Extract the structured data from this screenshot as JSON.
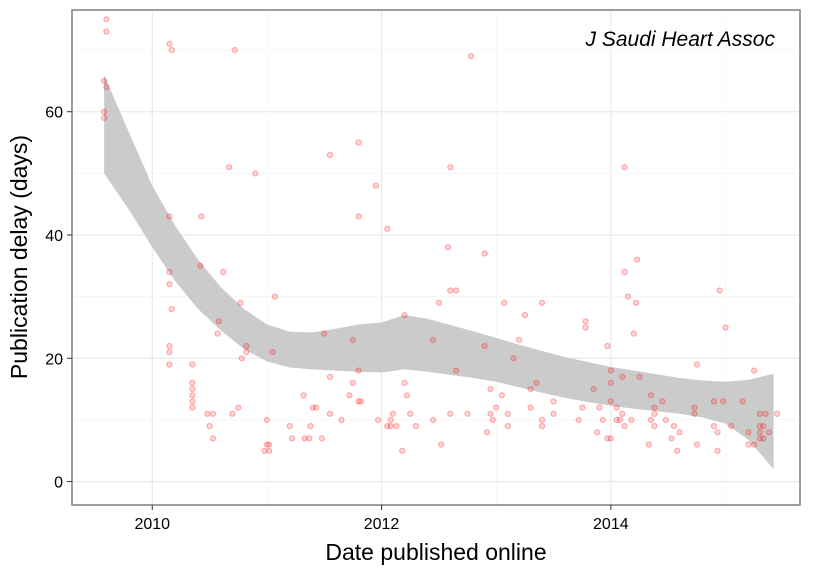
{
  "chart_data": {
    "type": "scatter",
    "title": "",
    "annotation": "J Saudi Heart Assoc",
    "xlabel": "Date published online",
    "ylabel": "Publication delay (days)",
    "xlim": [
      2009.3,
      2015.65
    ],
    "ylim": [
      -3.8,
      76.5
    ],
    "x_ticks": [
      2010,
      2012,
      2014
    ],
    "x_tick_labels": [
      "2010",
      "2012",
      "2014"
    ],
    "y_ticks": [
      0,
      20,
      40,
      60
    ],
    "y_tick_labels": [
      "0",
      "20",
      "40",
      "60"
    ],
    "grid": true,
    "legend": "none",
    "point_color": "#ff0000",
    "band_color": "#c8c8c8",
    "x_unit": "year (decimal)",
    "y_unit": "days",
    "points": [
      [
        2009.6,
        75
      ],
      [
        2009.6,
        73
      ],
      [
        2009.58,
        65
      ],
      [
        2009.6,
        64
      ],
      [
        2009.58,
        60
      ],
      [
        2009.58,
        59
      ],
      [
        2010.15,
        71
      ],
      [
        2010.17,
        70
      ],
      [
        2010.72,
        70
      ],
      [
        2012.78,
        69
      ],
      [
        2011.55,
        53
      ],
      [
        2011.8,
        55
      ],
      [
        2011.95,
        48
      ],
      [
        2010.67,
        51
      ],
      [
        2010.9,
        50
      ],
      [
        2012.6,
        51
      ],
      [
        2014.12,
        51
      ],
      [
        2012.05,
        41
      ],
      [
        2010.15,
        43
      ],
      [
        2010.43,
        43
      ],
      [
        2011.8,
        43
      ],
      [
        2012.58,
        38
      ],
      [
        2012.9,
        37
      ],
      [
        2014.23,
        36
      ],
      [
        2010.42,
        35
      ],
      [
        2010.15,
        34
      ],
      [
        2010.62,
        34
      ],
      [
        2014.12,
        34
      ],
      [
        2010.15,
        32
      ],
      [
        2012.6,
        31
      ],
      [
        2012.65,
        31
      ],
      [
        2014.95,
        31
      ],
      [
        2010.77,
        29
      ],
      [
        2012.5,
        29
      ],
      [
        2013.07,
        29
      ],
      [
        2013.4,
        29
      ],
      [
        2014.15,
        30
      ],
      [
        2014.22,
        29
      ],
      [
        2011.07,
        30
      ],
      [
        2010.17,
        28
      ],
      [
        2012.2,
        27
      ],
      [
        2013.25,
        27
      ],
      [
        2010.58,
        26
      ],
      [
        2013.78,
        26
      ],
      [
        2013.78,
        25
      ],
      [
        2015.0,
        25
      ],
      [
        2010.57,
        24
      ],
      [
        2011.5,
        24
      ],
      [
        2014.2,
        24
      ],
      [
        2011.75,
        23
      ],
      [
        2012.45,
        23
      ],
      [
        2013.2,
        23
      ],
      [
        2010.15,
        22
      ],
      [
        2010.82,
        22
      ],
      [
        2012.9,
        22
      ],
      [
        2013.97,
        22
      ],
      [
        2010.15,
        21
      ],
      [
        2010.82,
        21
      ],
      [
        2011.05,
        21
      ],
      [
        2013.15,
        20
      ],
      [
        2010.78,
        20
      ],
      [
        2010.15,
        19
      ],
      [
        2010.35,
        19
      ],
      [
        2011.8,
        18
      ],
      [
        2012.65,
        18
      ],
      [
        2014.0,
        18
      ],
      [
        2014.75,
        19
      ],
      [
        2015.25,
        18
      ],
      [
        2011.55,
        17
      ],
      [
        2014.0,
        16
      ],
      [
        2014.1,
        17
      ],
      [
        2014.25,
        17
      ],
      [
        2010.35,
        16
      ],
      [
        2011.75,
        16
      ],
      [
        2012.2,
        16
      ],
      [
        2013.35,
        16
      ],
      [
        2010.35,
        15
      ],
      [
        2012.95,
        15
      ],
      [
        2013.3,
        15
      ],
      [
        2013.85,
        15
      ],
      [
        2010.35,
        14
      ],
      [
        2011.32,
        14
      ],
      [
        2011.72,
        14
      ],
      [
        2012.22,
        14
      ],
      [
        2013.05,
        14
      ],
      [
        2014.35,
        14
      ],
      [
        2010.35,
        13
      ],
      [
        2011.8,
        13
      ],
      [
        2011.82,
        13
      ],
      [
        2013.5,
        13
      ],
      [
        2014.0,
        13
      ],
      [
        2014.45,
        13
      ],
      [
        2014.9,
        13
      ],
      [
        2014.98,
        13
      ],
      [
        2015.15,
        13
      ],
      [
        2010.35,
        12
      ],
      [
        2010.75,
        12
      ],
      [
        2011.4,
        12
      ],
      [
        2011.43,
        12
      ],
      [
        2013.0,
        12
      ],
      [
        2013.3,
        12
      ],
      [
        2013.75,
        12
      ],
      [
        2013.9,
        12
      ],
      [
        2014.05,
        12
      ],
      [
        2014.38,
        12
      ],
      [
        2014.73,
        12
      ],
      [
        2010.48,
        11
      ],
      [
        2010.53,
        11
      ],
      [
        2010.7,
        11
      ],
      [
        2011.55,
        11
      ],
      [
        2012.1,
        11
      ],
      [
        2012.25,
        11
      ],
      [
        2012.6,
        11
      ],
      [
        2012.75,
        11
      ],
      [
        2012.95,
        11
      ],
      [
        2013.1,
        11
      ],
      [
        2013.5,
        11
      ],
      [
        2014.1,
        11
      ],
      [
        2014.38,
        11
      ],
      [
        2014.73,
        11
      ],
      [
        2015.3,
        11
      ],
      [
        2015.35,
        11
      ],
      [
        2015.45,
        11
      ],
      [
        2011.0,
        10
      ],
      [
        2011.65,
        10
      ],
      [
        2011.97,
        10
      ],
      [
        2012.08,
        10
      ],
      [
        2012.45,
        10
      ],
      [
        2012.97,
        10
      ],
      [
        2013.4,
        10
      ],
      [
        2013.72,
        10
      ],
      [
        2013.93,
        10
      ],
      [
        2014.05,
        10
      ],
      [
        2014.08,
        10
      ],
      [
        2014.18,
        10
      ],
      [
        2014.35,
        10
      ],
      [
        2014.48,
        10
      ],
      [
        2010.5,
        9
      ],
      [
        2011.2,
        9
      ],
      [
        2011.38,
        9
      ],
      [
        2012.05,
        9
      ],
      [
        2012.08,
        9
      ],
      [
        2012.13,
        9
      ],
      [
        2012.3,
        9
      ],
      [
        2013.1,
        9
      ],
      [
        2013.4,
        9
      ],
      [
        2014.12,
        9
      ],
      [
        2014.38,
        9
      ],
      [
        2014.55,
        9
      ],
      [
        2014.9,
        9
      ],
      [
        2015.05,
        9
      ],
      [
        2015.3,
        9
      ],
      [
        2015.33,
        9
      ],
      [
        2012.92,
        8
      ],
      [
        2013.88,
        8
      ],
      [
        2014.6,
        8
      ],
      [
        2014.93,
        8
      ],
      [
        2015.2,
        8
      ],
      [
        2015.3,
        8
      ],
      [
        2015.38,
        8
      ],
      [
        2010.53,
        7
      ],
      [
        2011.22,
        7
      ],
      [
        2011.33,
        7
      ],
      [
        2011.37,
        7
      ],
      [
        2011.48,
        7
      ],
      [
        2013.97,
        7
      ],
      [
        2014.0,
        7
      ],
      [
        2014.53,
        7
      ],
      [
        2015.3,
        7
      ],
      [
        2015.33,
        7
      ],
      [
        2011.0,
        6
      ],
      [
        2011.02,
        6
      ],
      [
        2012.52,
        6
      ],
      [
        2014.33,
        6
      ],
      [
        2014.75,
        6
      ],
      [
        2015.2,
        6
      ],
      [
        2015.25,
        6
      ],
      [
        2010.98,
        5
      ],
      [
        2011.02,
        5
      ],
      [
        2012.18,
        5
      ],
      [
        2014.58,
        5
      ],
      [
        2014.93,
        5
      ]
    ],
    "smooth_band": {
      "x": [
        2009.58,
        2009.8,
        2010.0,
        2010.2,
        2010.4,
        2010.6,
        2010.8,
        2011.0,
        2011.2,
        2011.4,
        2011.6,
        2011.8,
        2012.0,
        2012.2,
        2012.4,
        2012.6,
        2012.8,
        2013.0,
        2013.2,
        2013.4,
        2013.6,
        2013.8,
        2014.0,
        2014.2,
        2014.4,
        2014.6,
        2014.8,
        2015.0,
        2015.2,
        2015.42
      ],
      "upper": [
        66.0,
        56.5,
        48.0,
        41.5,
        36.0,
        31.5,
        28.0,
        25.5,
        24.3,
        24.2,
        24.8,
        25.5,
        25.8,
        27.0,
        26.4,
        25.4,
        24.4,
        23.3,
        22.2,
        21.2,
        20.2,
        19.4,
        18.6,
        18.0,
        17.4,
        16.8,
        16.4,
        16.2,
        16.5,
        17.5
      ],
      "lower": [
        50.0,
        44.0,
        38.0,
        32.5,
        28.0,
        24.5,
        21.5,
        19.5,
        18.5,
        18.2,
        18.0,
        17.8,
        17.7,
        18.2,
        17.8,
        17.3,
        16.8,
        16.2,
        15.3,
        14.4,
        13.6,
        12.9,
        12.3,
        11.8,
        11.4,
        11.0,
        10.4,
        9.4,
        6.8,
        2.0
      ]
    }
  }
}
